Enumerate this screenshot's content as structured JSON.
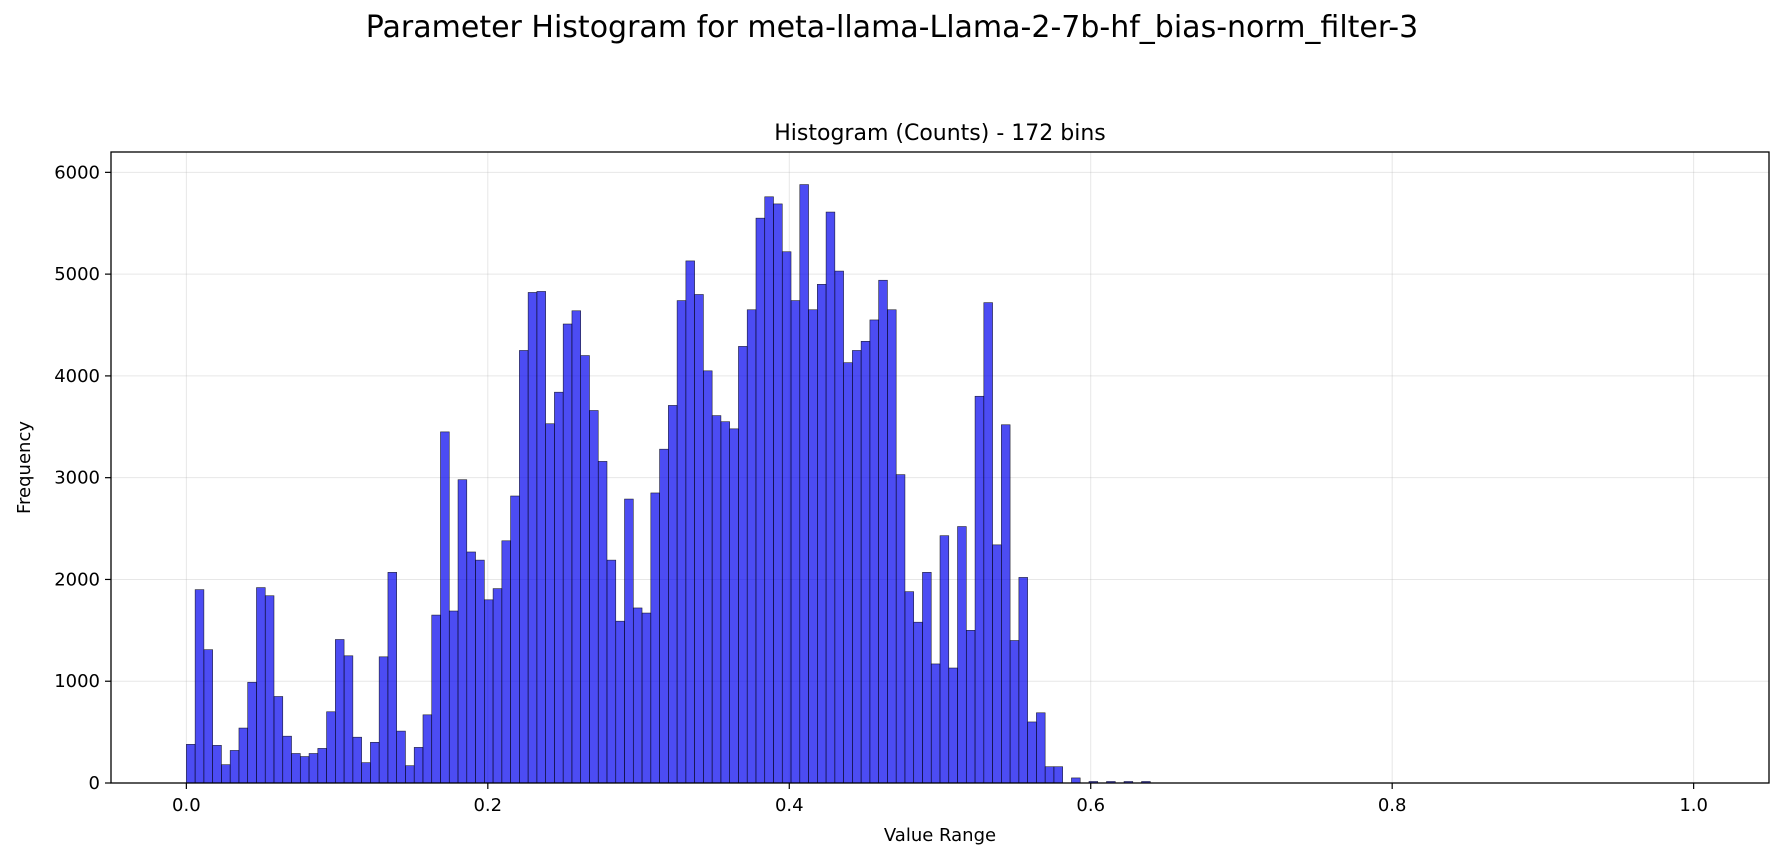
{
  "figure": {
    "suptitle": "Parameter Histogram for meta-llama-Llama-2-7b-hf_bias-norm_filter-3"
  },
  "chart_data": {
    "type": "bar",
    "title": "Histogram (Counts) - 172 bins",
    "xlabel": "Value Range",
    "ylabel": "Frequency",
    "xlim": [
      -0.05,
      1.05
    ],
    "ylim": [
      0,
      6200
    ],
    "xticks": [
      0.0,
      0.2,
      0.4,
      0.6,
      0.8,
      1.0
    ],
    "xtick_labels": [
      "0.0",
      "0.2",
      "0.4",
      "0.6",
      "0.8",
      "1.0"
    ],
    "yticks": [
      0,
      1000,
      2000,
      3000,
      4000,
      5000,
      6000
    ],
    "ytick_labels": [
      "0",
      "1000",
      "2000",
      "3000",
      "4000",
      "5000",
      "6000"
    ],
    "grid": true,
    "bar_color": "#0000ee",
    "bar_opacity": 0.7,
    "edge_color": "#000000",
    "bin_range": [
      0.0,
      1.0
    ],
    "bins": 172,
    "values": [
      380,
      1900,
      1310,
      370,
      180,
      320,
      540,
      990,
      1920,
      1840,
      850,
      460,
      290,
      260,
      290,
      340,
      700,
      1410,
      1250,
      450,
      200,
      400,
      1240,
      2070,
      510,
      170,
      350,
      670,
      1650,
      3450,
      1690,
      2980,
      2270,
      2190,
      1800,
      1910,
      2380,
      2820,
      4250,
      4820,
      4830,
      3530,
      3840,
      4510,
      4640,
      4200,
      3660,
      3160,
      2190,
      1590,
      2790,
      1720,
      1670,
      2850,
      3280,
      3710,
      4740,
      5130,
      4800,
      4050,
      3610,
      3550,
      3480,
      4290,
      4650,
      5550,
      5760,
      5690,
      5220,
      4740,
      5880,
      4650,
      4900,
      5610,
      5030,
      4130,
      4250,
      4340,
      4550,
      4940,
      4650,
      3030,
      1880,
      1580,
      2070,
      1170,
      2430,
      1130,
      2520,
      1500,
      3800,
      4720,
      2340,
      3520,
      1400,
      2020,
      600,
      690,
      160,
      160,
      0,
      50,
      0,
      15,
      0,
      15,
      0,
      15,
      0,
      15,
      0,
      0,
      0,
      0,
      0,
      0,
      0,
      0,
      0,
      0,
      0,
      0,
      0,
      0,
      0,
      0,
      0,
      0,
      0,
      0,
      0,
      0,
      0,
      0,
      0,
      0,
      0,
      0,
      0,
      0,
      0,
      0,
      0,
      0,
      0,
      0,
      0,
      0,
      0,
      0,
      0,
      0,
      0,
      0,
      0,
      0,
      0,
      0,
      0,
      0,
      0,
      0,
      0,
      0,
      0,
      0,
      0,
      0,
      0,
      0
    ]
  }
}
